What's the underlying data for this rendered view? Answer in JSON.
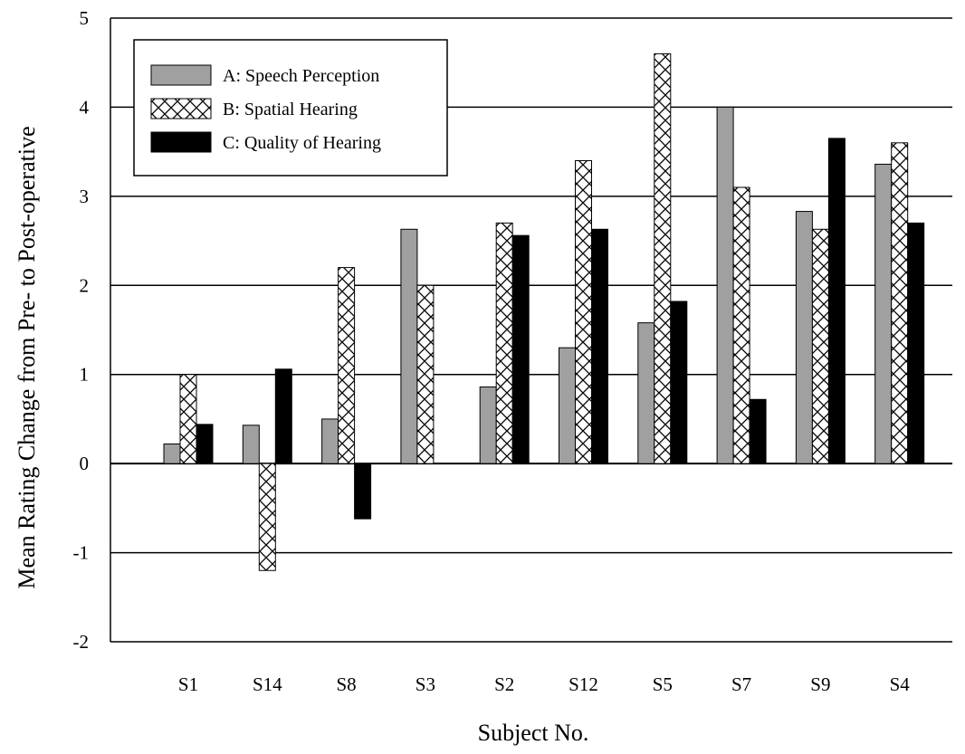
{
  "chart_data": {
    "type": "bar",
    "title": "",
    "xlabel": "Subject No.",
    "ylabel": "Mean Rating Change from Pre- to Post-operative",
    "ylim": [
      -2,
      5
    ],
    "yticks": [
      5,
      4,
      3,
      2,
      1,
      0,
      -1,
      -2
    ],
    "grid": "horizontal",
    "legend_position": "top-left",
    "categories": [
      "S1",
      "S14",
      "S8",
      "S3",
      "S2",
      "S12",
      "S5",
      "S7",
      "S9",
      "S4"
    ],
    "series": [
      {
        "name": "A: Speech Perception",
        "pattern": "solid-gray",
        "color": "#a0a0a0",
        "values": [
          0.22,
          0.43,
          0.5,
          2.63,
          0.86,
          1.3,
          1.58,
          4.0,
          2.83,
          3.36
        ]
      },
      {
        "name": "B: Spatial Hearing",
        "pattern": "crosshatch",
        "color": "#ffffff",
        "values": [
          1.0,
          -1.2,
          2.2,
          2.0,
          2.7,
          3.4,
          4.6,
          3.1,
          2.63,
          3.6
        ]
      },
      {
        "name": "C: Quality of Hearing",
        "pattern": "solid-black",
        "color": "#000000",
        "values": [
          0.44,
          1.06,
          -0.62,
          null,
          2.56,
          2.63,
          1.82,
          0.72,
          3.65,
          2.7
        ]
      }
    ]
  }
}
